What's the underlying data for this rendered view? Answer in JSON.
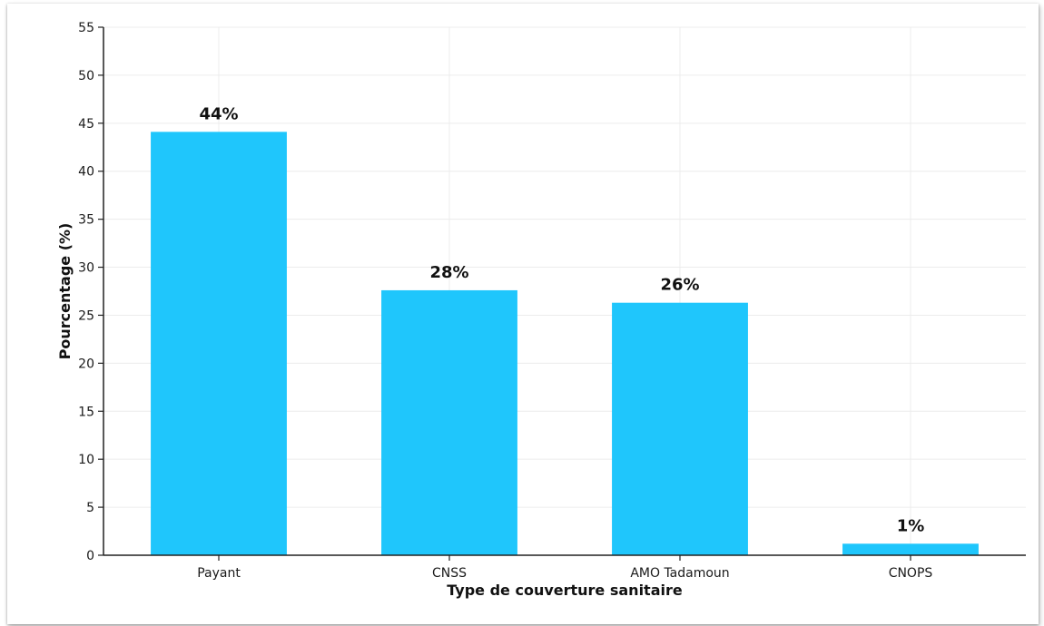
{
  "chart_data": {
    "type": "bar",
    "title": "",
    "xlabel": "Type de couverture sanitaire",
    "ylabel": "Pourcentage (%)",
    "categories": [
      "Payant",
      "CNSS",
      "AMO Tadamoun",
      "CNOPS"
    ],
    "values": [
      44.1,
      27.6,
      26.3,
      1.2
    ],
    "data_labels": [
      "44%",
      "28%",
      "26%",
      "1%"
    ],
    "ylim": [
      0,
      55
    ],
    "yticks": [
      0,
      5,
      10,
      15,
      20,
      25,
      30,
      35,
      40,
      45,
      50,
      55
    ],
    "grid": true,
    "legend": "none",
    "bar_color": "#1fc6fc"
  }
}
